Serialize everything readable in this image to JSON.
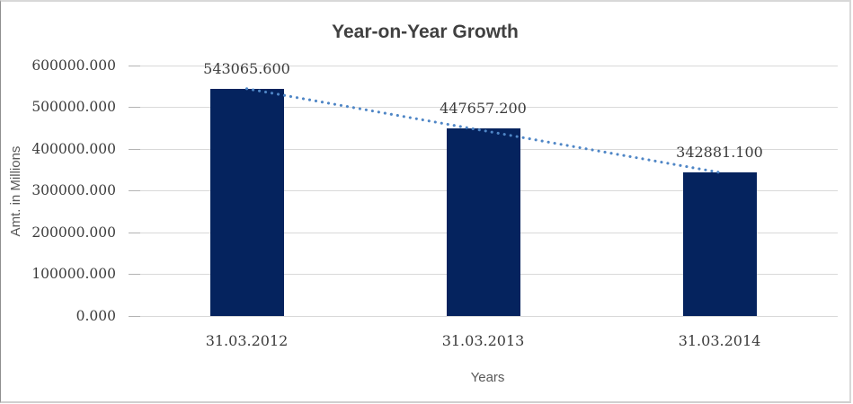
{
  "chart_data": {
    "type": "bar",
    "title": "Year-on-Year Growth",
    "xlabel": "Years",
    "ylabel": "Amt. in Millions",
    "categories": [
      "31.03.2012",
      "31.03.2013",
      "31.03.2014"
    ],
    "values": [
      543065.6,
      447657.2,
      342881.1
    ],
    "data_labels": [
      "543065.600",
      "447657.200",
      "342881.100"
    ],
    "ylim": [
      0,
      600000
    ],
    "yticks": [
      {
        "value": 0,
        "label": "0.000"
      },
      {
        "value": 100000,
        "label": "100000.000"
      },
      {
        "value": 200000,
        "label": "200000.000"
      },
      {
        "value": 300000,
        "label": "300000.000"
      },
      {
        "value": 400000,
        "label": "400000.000"
      },
      {
        "value": 500000,
        "label": "500000.000"
      },
      {
        "value": 600000,
        "label": "600000.000"
      }
    ],
    "grid": true,
    "legend": false,
    "trendline": {
      "type": "linear",
      "style": "dotted",
      "color": "#4f86c6"
    },
    "colors": {
      "bar": "#05235e",
      "gridline": "#d9d9d9",
      "tick_mark": "#b3b3b3",
      "tick_text": "#3c3c3c",
      "title_text": "#404040",
      "axis_title_text": "#595959"
    }
  }
}
